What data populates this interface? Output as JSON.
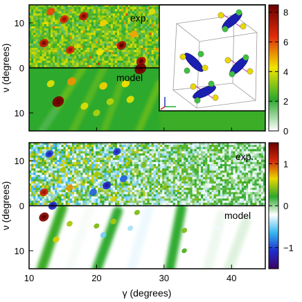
{
  "chart_data": [
    {
      "type": "heatmap",
      "panel": "top",
      "xlim": [
        10,
        45
      ],
      "ylim": [
        14,
        -14
      ],
      "ylabel": "ν (degrees)",
      "y_ticks": [
        {
          "value": -10,
          "label": "10"
        },
        {
          "value": 0,
          "label": "0"
        },
        {
          "value": 10,
          "label": "10"
        }
      ],
      "region_labels": [
        "exp.",
        "model"
      ],
      "colorbar": {
        "range": [
          0,
          8.5
        ],
        "ticks": [
          0,
          2,
          4,
          6,
          8
        ],
        "tick_labels": [
          "0",
          "2",
          "4",
          "6",
          "8"
        ],
        "colors": [
          "#ffffff",
          "#2ba82b",
          "#f2e600",
          "#e02a0a",
          "#6a0000"
        ]
      },
      "background_levels": {
        "exp": 2.4,
        "model": 2.1
      },
      "peaks_exp": [
        {
          "x": 13.2,
          "y": -12.5,
          "value": 6.0
        },
        {
          "x": 15.2,
          "y": -10.8,
          "value": 6.5
        },
        {
          "x": 18.1,
          "y": -11.5,
          "value": 7.0
        },
        {
          "x": 12.2,
          "y": -5.5,
          "value": 7.0
        },
        {
          "x": 16.1,
          "y": -4.0,
          "value": 6.5
        },
        {
          "x": 23.7,
          "y": -5.0,
          "value": 7.5
        },
        {
          "x": 21.0,
          "y": -10.0,
          "value": 4.5
        },
        {
          "x": 20.5,
          "y": -3.5,
          "value": 4.2
        },
        {
          "x": 25.5,
          "y": -7.5,
          "value": 5.0
        },
        {
          "x": 26.6,
          "y": -1.5,
          "value": 7.5
        },
        {
          "x": 28.2,
          "y": -12.5,
          "value": 4.0
        }
      ],
      "peaks_model": [
        {
          "x": 14.3,
          "y": 7.5,
          "value": 8.3
        },
        {
          "x": 26.5,
          "y": 0.2,
          "value": 8.3
        },
        {
          "x": 16.3,
          "y": 3.0,
          "value": 5.2
        },
        {
          "x": 21.0,
          "y": 4.0,
          "value": 4.5
        },
        {
          "x": 24.3,
          "y": 3.5,
          "value": 4.3
        },
        {
          "x": 25.0,
          "y": 7.0,
          "value": 4.0
        },
        {
          "x": 18.2,
          "y": 8.5,
          "value": 4.0
        },
        {
          "x": 13.2,
          "y": 3.5,
          "value": 4.0
        },
        {
          "x": 20.0,
          "y": 10.0,
          "value": 3.5
        },
        {
          "x": 22.0,
          "y": 7.5,
          "value": 3.6
        }
      ],
      "inset": "crystal-structure"
    },
    {
      "type": "heatmap",
      "panel": "bottom",
      "xlim": [
        10,
        45
      ],
      "ylim": [
        14,
        -14
      ],
      "xlabel": "γ (degrees)",
      "ylabel": "ν (degrees)",
      "x_ticks": [
        10,
        20,
        30,
        40
      ],
      "x_tick_labels": [
        "10",
        "20",
        "30",
        "40"
      ],
      "y_ticks": [
        {
          "value": -10,
          "label": "10"
        },
        {
          "value": 0,
          "label": "0"
        },
        {
          "value": 10,
          "label": "10"
        }
      ],
      "region_labels": [
        "exp.",
        "model"
      ],
      "colorbar": {
        "range": [
          -1.5,
          1.5
        ],
        "ticks": [
          -1,
          0,
          1
        ],
        "tick_labels": [
          "−1",
          "0",
          "1"
        ],
        "colors": [
          "#3c0060",
          "#1e2fd0",
          "#33b7ef",
          "#ffffff",
          "#2ba82b",
          "#ead600",
          "#d12a0a",
          "#6a0000"
        ]
      },
      "peaks_exp": [
        {
          "x": 12.2,
          "y": -3.0,
          "value": 1.1
        },
        {
          "x": 16.0,
          "y": -4.0,
          "value": 0.8
        },
        {
          "x": 13.0,
          "y": -11.5,
          "value": -1.0
        },
        {
          "x": 20.0,
          "y": -7.0,
          "value": 0.5
        },
        {
          "x": 21.5,
          "y": -4.5,
          "value": -1.1
        },
        {
          "x": 23.0,
          "y": -12.0,
          "value": -1.0
        },
        {
          "x": 24.0,
          "y": -6.0,
          "value": -0.9
        },
        {
          "x": 19.5,
          "y": -3.0,
          "value": -0.9
        },
        {
          "x": 15.0,
          "y": -8.0,
          "value": 0.5
        },
        {
          "x": 27.0,
          "y": -9.0,
          "value": 0.4
        },
        {
          "x": 33.0,
          "y": -6.0,
          "value": 0.4
        },
        {
          "x": 22.5,
          "y": -1.5,
          "value": 0.6
        }
      ],
      "peaks_model": [
        {
          "x": 12.2,
          "y": 2.5,
          "value": 1.4
        },
        {
          "x": 13.5,
          "y": 0.0,
          "value": -1.1
        },
        {
          "x": 16.0,
          "y": 4.0,
          "value": 0.5
        },
        {
          "x": 14.0,
          "y": 7.5,
          "value": 0.6
        },
        {
          "x": 20.0,
          "y": 4.5,
          "value": 0.4
        },
        {
          "x": 21.0,
          "y": 6.5,
          "value": -0.5
        },
        {
          "x": 22.5,
          "y": 3.5,
          "value": 0.5
        },
        {
          "x": 26.0,
          "y": 1.5,
          "value": 0.4
        },
        {
          "x": 25.0,
          "y": 5.0,
          "value": -0.4
        },
        {
          "x": 33.0,
          "y": 5.5,
          "value": 0.4
        },
        {
          "x": 38.0,
          "y": 5.0,
          "value": -0.25
        },
        {
          "x": 33.0,
          "y": 10.0,
          "value": 0.3
        }
      ]
    }
  ]
}
